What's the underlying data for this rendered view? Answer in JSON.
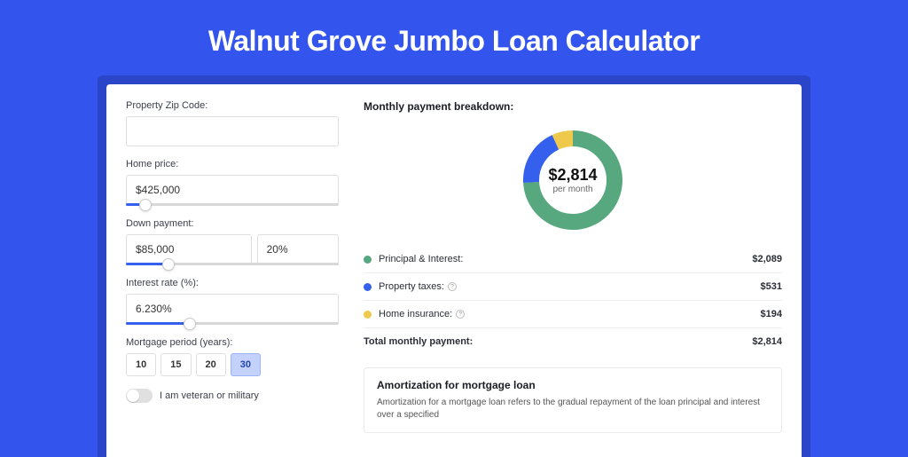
{
  "page": {
    "title": "Walnut Grove Jumbo Loan Calculator",
    "background_color": "#3355ee",
    "card_frame_color": "#2a45c7"
  },
  "form": {
    "zip": {
      "label": "Property Zip Code:",
      "value": ""
    },
    "home_price": {
      "label": "Home price:",
      "value": "$425,000",
      "slider_pct": 9
    },
    "down_payment": {
      "label": "Down payment:",
      "value": "$85,000",
      "pct_value": "20%",
      "slider_pct": 20
    },
    "interest_rate": {
      "label": "Interest rate (%):",
      "value": "6.230%",
      "slider_pct": 30
    },
    "mortgage_period": {
      "label": "Mortgage period (years):",
      "options": [
        "10",
        "15",
        "20",
        "30"
      ],
      "selected": "30"
    },
    "veteran": {
      "label": "I am veteran or military",
      "on": false
    }
  },
  "breakdown": {
    "title": "Monthly payment breakdown:",
    "donut": {
      "amount": "$2,814",
      "sub": "per month",
      "slices": [
        {
          "color": "#57a77f",
          "pct": 74
        },
        {
          "color": "#3560ee",
          "pct": 19
        },
        {
          "color": "#efc94c",
          "pct": 7
        }
      ],
      "bg_color": "#f4f5f7"
    },
    "lines": [
      {
        "color": "#57a77f",
        "label": "Principal & Interest:",
        "value": "$2,089",
        "info": false
      },
      {
        "color": "#3560ee",
        "label": "Property taxes:",
        "value": "$531",
        "info": true
      },
      {
        "color": "#efc94c",
        "label": "Home insurance:",
        "value": "$194",
        "info": true
      }
    ],
    "total": {
      "label": "Total monthly payment:",
      "value": "$2,814"
    }
  },
  "amortization": {
    "title": "Amortization for mortgage loan",
    "text": "Amortization for a mortgage loan refers to the gradual repayment of the loan principal and interest over a specified"
  }
}
